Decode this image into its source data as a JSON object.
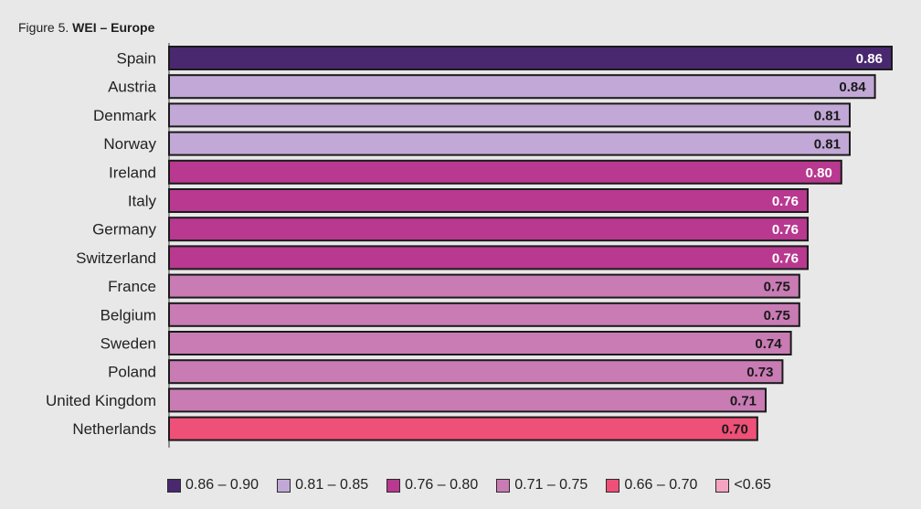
{
  "figure": {
    "title_prefix": "Figure 5.",
    "title_main": "WEI – Europe"
  },
  "chart_data": {
    "type": "bar",
    "orientation": "horizontal",
    "categories": [
      "Spain",
      "Austria",
      "Denmark",
      "Norway",
      "Ireland",
      "Italy",
      "Germany",
      "Switzerland",
      "France",
      "Belgium",
      "Sweden",
      "Poland",
      "United Kingdom",
      "Netherlands"
    ],
    "values": [
      0.86,
      0.84,
      0.81,
      0.81,
      0.8,
      0.76,
      0.76,
      0.76,
      0.75,
      0.75,
      0.74,
      0.73,
      0.71,
      0.7
    ],
    "value_labels": [
      "0.86",
      "0.84",
      "0.81",
      "0.81",
      "0.80",
      "0.76",
      "0.76",
      "0.76",
      "0.75",
      "0.75",
      "0.74",
      "0.73",
      "0.71",
      "0.70"
    ],
    "bar_colors": [
      "#4a2870",
      "#c1a8d6",
      "#c1a8d6",
      "#c1a8d6",
      "#b8398f",
      "#b8398f",
      "#b8398f",
      "#b8398f",
      "#c97bb4",
      "#c97bb4",
      "#c97bb4",
      "#c97bb4",
      "#c97bb4",
      "#ee5078"
    ],
    "label_colors": [
      "#ffffff",
      "#1a1a1a",
      "#1a1a1a",
      "#1a1a1a",
      "#ffffff",
      "#ffffff",
      "#ffffff",
      "#ffffff",
      "#1a1a1a",
      "#1a1a1a",
      "#1a1a1a",
      "#1a1a1a",
      "#1a1a1a",
      "#1a1a1a"
    ],
    "xlim": [
      0,
      0.86
    ],
    "grid": false,
    "legend_position": "bottom",
    "legend": [
      {
        "label": "0.86 – 0.90",
        "color": "#4a2870"
      },
      {
        "label": "0.81 – 0.85",
        "color": "#c1a8d6"
      },
      {
        "label": "0.76 – 0.80",
        "color": "#b8398f"
      },
      {
        "label": "0.71 – 0.75",
        "color": "#c97bb4"
      },
      {
        "label": "0.66 – 0.70",
        "color": "#ee5078"
      },
      {
        "label": "<0.65",
        "color": "#f4a4c0"
      }
    ]
  }
}
